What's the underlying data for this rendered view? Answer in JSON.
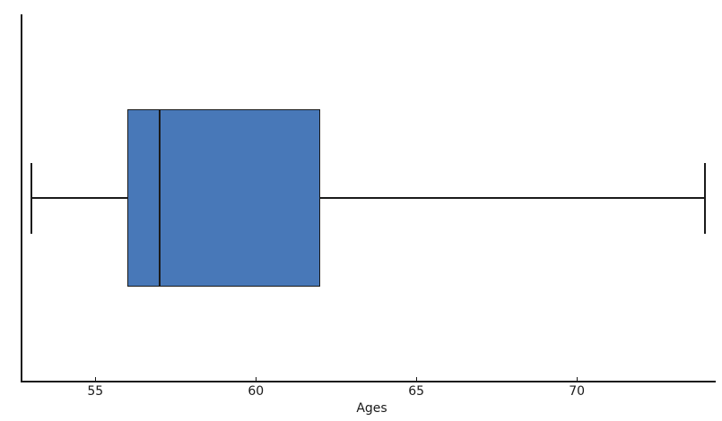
{
  "chart_data": {
    "type": "boxplot",
    "orientation": "horizontal",
    "title": "",
    "xlabel": "Ages",
    "ylabel": "",
    "x_ticks": [
      55,
      60,
      65,
      70
    ],
    "xlim": [
      52.7,
      74.3
    ],
    "grid": false,
    "legend": null,
    "series": [
      {
        "name": "Ages",
        "whisker_low": 53,
        "q1": 56,
        "median": 57,
        "q3": 62,
        "whisker_high": 74,
        "outliers": []
      }
    ],
    "colors": {
      "box_fill": "#4878b8",
      "line": "#1a1a1a",
      "text": "#1a1a1a",
      "background": "#ffffff"
    }
  }
}
